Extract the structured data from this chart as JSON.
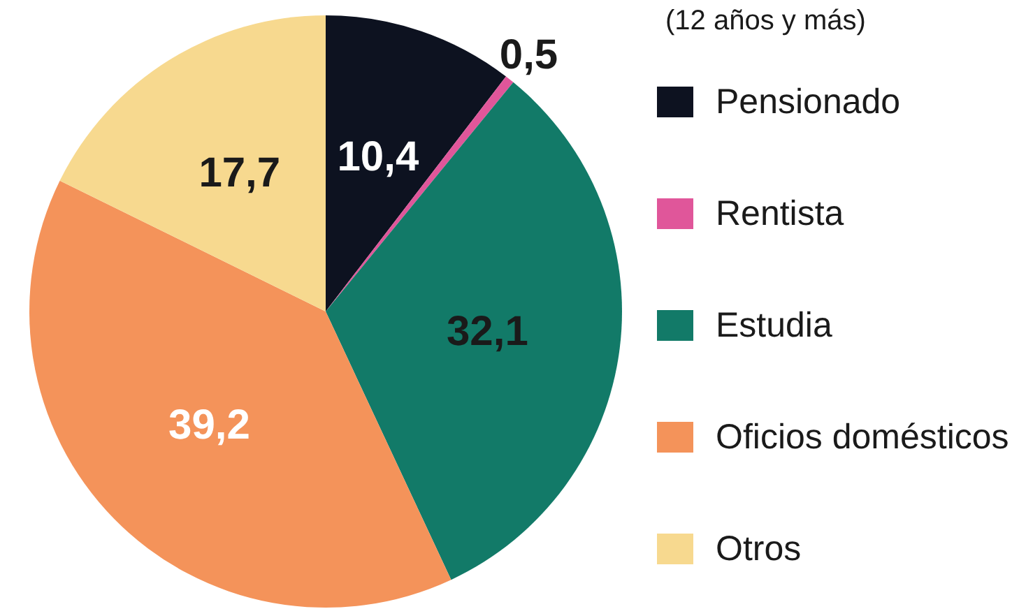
{
  "chart_data": {
    "type": "pie",
    "legend_title": "(12 años y más)",
    "categories": [
      "Pensionado",
      "Rentista",
      "Estudia",
      "Oficios domésticos",
      "Otros"
    ],
    "values": [
      10.4,
      0.5,
      32.1,
      39.2,
      17.7
    ],
    "value_labels": [
      "10,4",
      "0,5",
      "32,1",
      "39,2",
      "17,7"
    ],
    "colors": [
      "#0d1220",
      "#e0569a",
      "#127a68",
      "#f4935a",
      "#f7d98f"
    ],
    "legend": "right"
  }
}
